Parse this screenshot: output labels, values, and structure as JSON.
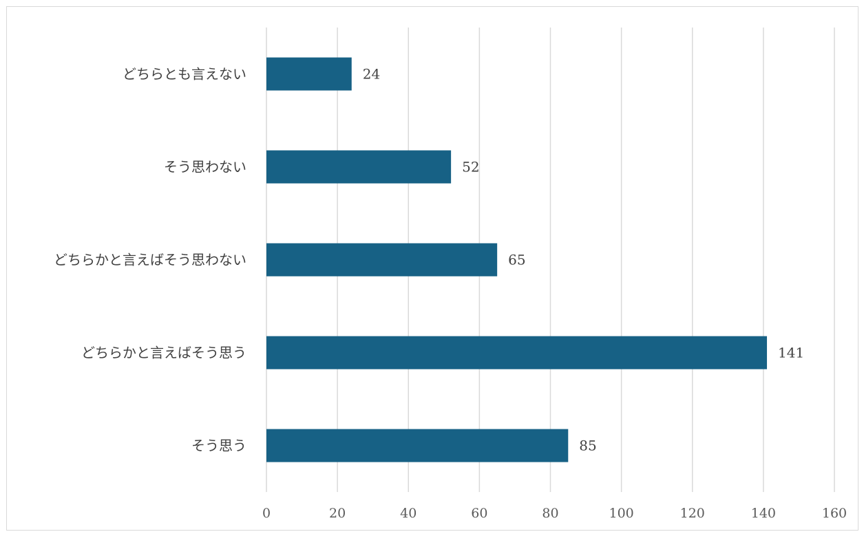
{
  "chart_data": {
    "type": "bar",
    "orientation": "horizontal",
    "title": "",
    "xlabel": "",
    "ylabel": "",
    "categories": [
      "どちらとも言えない",
      "そう思わない",
      "どちらかと言えばそう思わない",
      "どちらかと言えばそう思う",
      "そう思う"
    ],
    "values": [
      24,
      52,
      65,
      141,
      85
    ],
    "xlim": [
      0,
      160
    ],
    "xticks": [
      0,
      20,
      40,
      60,
      80,
      100,
      120,
      140,
      160
    ],
    "grid": true,
    "legend": "none",
    "data_labels": true,
    "colors": {
      "bar": "#176185",
      "grid": "#d9d9d9",
      "label_text": "#404040",
      "tick_text": "#595959"
    }
  }
}
